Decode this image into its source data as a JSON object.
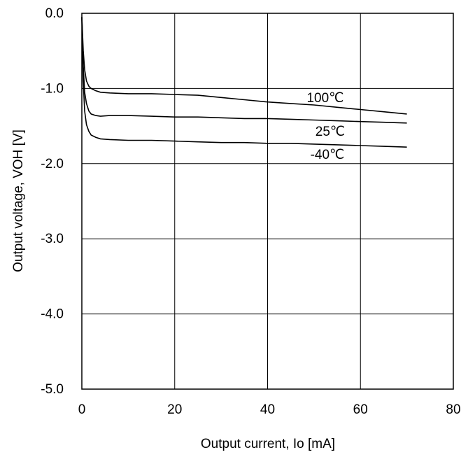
{
  "chart_data": {
    "type": "line",
    "title": "",
    "xlabel": "Output current, Io [mA]",
    "ylabel": "Output voltage,  VOH [V]",
    "xlim": [
      0,
      80
    ],
    "ylim": [
      -5.0,
      0.0
    ],
    "x_ticks": [
      0,
      20,
      40,
      60,
      80
    ],
    "x_tick_labels": [
      "0",
      "20",
      "40",
      "60",
      "80"
    ],
    "y_ticks": [
      0.0,
      -1.0,
      -2.0,
      -3.0,
      -4.0,
      -5.0
    ],
    "y_tick_labels": [
      "0.0",
      "-1.0",
      "-2.0",
      "-3.0",
      "-4.0",
      "-5.0"
    ],
    "grid": true,
    "legend": "inline labels near line ends",
    "series": [
      {
        "name": "100℃",
        "x": [
          0,
          0.3,
          0.6,
          1,
          1.5,
          2,
          3,
          4,
          6,
          10,
          15,
          20,
          25,
          30,
          35,
          40,
          45,
          50,
          55,
          60,
          65,
          70
        ],
        "y": [
          -0.05,
          -0.5,
          -0.75,
          -0.9,
          -0.97,
          -1.0,
          -1.03,
          -1.05,
          -1.06,
          -1.07,
          -1.07,
          -1.08,
          -1.09,
          -1.12,
          -1.15,
          -1.18,
          -1.2,
          -1.22,
          -1.25,
          -1.28,
          -1.31,
          -1.34
        ]
      },
      {
        "name": "25℃",
        "x": [
          0,
          0.3,
          0.6,
          1,
          1.5,
          2,
          3,
          4,
          6,
          10,
          15,
          20,
          25,
          30,
          35,
          40,
          45,
          50,
          55,
          60,
          65,
          70
        ],
        "y": [
          -0.05,
          -0.7,
          -1.05,
          -1.2,
          -1.3,
          -1.34,
          -1.36,
          -1.37,
          -1.36,
          -1.36,
          -1.37,
          -1.38,
          -1.38,
          -1.39,
          -1.4,
          -1.4,
          -1.41,
          -1.42,
          -1.43,
          -1.44,
          -1.45,
          -1.46
        ]
      },
      {
        "name": "-40℃",
        "x": [
          0,
          0.3,
          0.6,
          1,
          1.5,
          2,
          3,
          4,
          6,
          10,
          15,
          20,
          25,
          30,
          35,
          40,
          45,
          50,
          55,
          60,
          65,
          70
        ],
        "y": [
          -0.05,
          -0.9,
          -1.3,
          -1.48,
          -1.57,
          -1.62,
          -1.65,
          -1.67,
          -1.68,
          -1.69,
          -1.69,
          -1.7,
          -1.71,
          -1.72,
          -1.72,
          -1.73,
          -1.73,
          -1.74,
          -1.75,
          -1.76,
          -1.77,
          -1.78
        ]
      }
    ],
    "annotations": [
      "100℃",
      "25℃",
      "-40℃"
    ]
  }
}
